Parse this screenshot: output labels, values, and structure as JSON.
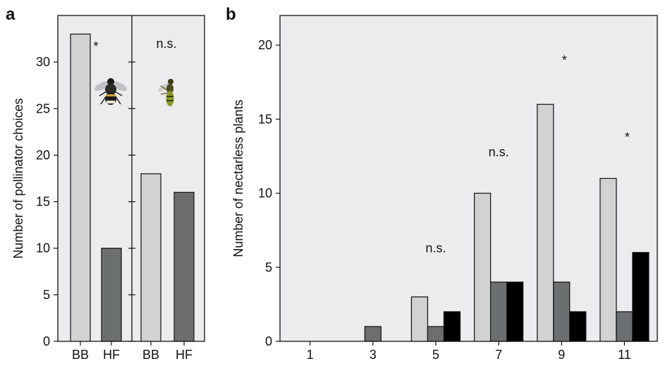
{
  "colors": {
    "plot_bg": "#ecebed",
    "light_bar": "#d2d2d2",
    "mid_bar": "#6d6e70",
    "dark_bar": "#000000",
    "axis": "#111111"
  },
  "chart_data": [
    {
      "panel": "a",
      "type": "bar",
      "ylabel": "Number of pollinator choices",
      "ylim": [
        0,
        35
      ],
      "yticks": [
        0,
        5,
        10,
        15,
        20,
        25,
        30
      ],
      "categories": [
        "BB",
        "HF",
        "BB",
        "HF"
      ],
      "values": [
        33,
        10,
        18,
        16
      ],
      "bar_colors": [
        "#d2d2d2",
        "#6d6e70",
        "#d2d2d2",
        "#6d6e70"
      ],
      "groups": [
        {
          "annotation": "*",
          "icon": "bumblebee-icon"
        },
        {
          "annotation": "n.s.",
          "icon": "hoverfly-icon"
        }
      ]
    },
    {
      "panel": "b",
      "type": "bar",
      "ylabel": "Number of nectarless plants",
      "ylim": [
        0,
        22
      ],
      "yticks": [
        0,
        5,
        10,
        15,
        20
      ],
      "categories": [
        "1",
        "3",
        "5",
        "7",
        "9",
        "11"
      ],
      "series": [
        {
          "color": "#d2d2d2",
          "values": [
            0,
            0,
            3,
            10,
            16,
            11
          ]
        },
        {
          "color": "#6d6e70",
          "values": [
            0,
            1,
            1,
            4,
            4,
            2
          ]
        },
        {
          "color": "#000000",
          "values": [
            0,
            0,
            2,
            4,
            2,
            6
          ]
        }
      ],
      "annotations": [
        {
          "category": "5",
          "text": "n.s.",
          "y": 6.0
        },
        {
          "category": "7",
          "text": "n.s.",
          "y": 12.5
        },
        {
          "category": "9",
          "text": "*",
          "y": 18.7
        },
        {
          "category": "11",
          "text": "*",
          "y": 13.5
        }
      ]
    }
  ]
}
